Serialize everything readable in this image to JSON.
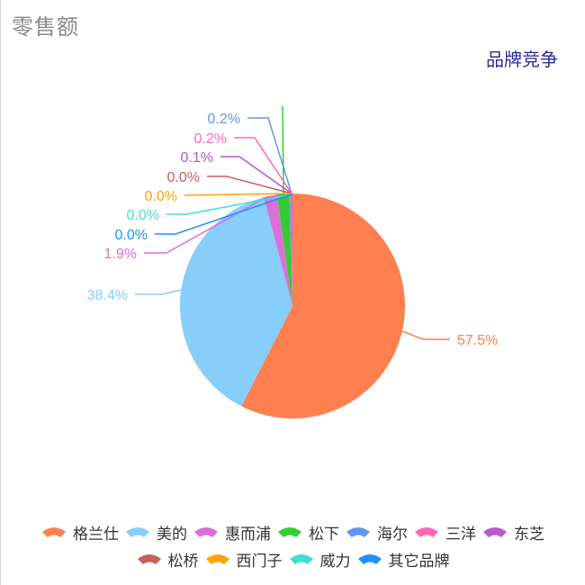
{
  "header": {
    "title": "零售额",
    "subtitle": "品牌竞争"
  },
  "chart_data": {
    "type": "pie",
    "title": "零售额",
    "subtitle": "品牌竞争",
    "start_angle": "12 o'clock, clockwise",
    "legend_position": "bottom",
    "categories": [
      "格兰仕",
      "美的",
      "惠而浦",
      "松下",
      "海尔",
      "三洋",
      "东芝",
      "松桥",
      "西门子",
      "威力",
      "其它品牌"
    ],
    "values": [
      57.5,
      38.4,
      1.9,
      1.7,
      0.2,
      0.2,
      0.1,
      0.0,
      0.0,
      0.0,
      0.0
    ],
    "labels": [
      "57.5%",
      "38.4%",
      "1.9%",
      "",
      "0.2%",
      "0.2%",
      "0.1%",
      "0.0%",
      "0.0%",
      "0.0%",
      "0.0%"
    ],
    "colors": [
      "#ff7f50",
      "#87cefa",
      "#da70d6",
      "#32cd32",
      "#6495ed",
      "#ff69b4",
      "#ba55d3",
      "#cd5c5c",
      "#ffa500",
      "#40e0d0",
      "#1e90ff"
    ]
  },
  "legend": {
    "row1": [
      {
        "label": "格兰仕",
        "color": "#ff7f50"
      },
      {
        "label": "美的",
        "color": "#87cefa"
      },
      {
        "label": "惠而浦",
        "color": "#da70d6"
      },
      {
        "label": "松下",
        "color": "#32cd32"
      },
      {
        "label": "海尔",
        "color": "#6495ed"
      },
      {
        "label": "三洋",
        "color": "#ff69b4"
      },
      {
        "label": "东芝",
        "color": "#ba55d3"
      }
    ],
    "row2": [
      {
        "label": "松桥",
        "color": "#cd5c5c"
      },
      {
        "label": "西门子",
        "color": "#ffa500"
      },
      {
        "label": "威力",
        "color": "#40e0d0"
      },
      {
        "label": "其它品牌",
        "color": "#1e90ff"
      }
    ]
  }
}
